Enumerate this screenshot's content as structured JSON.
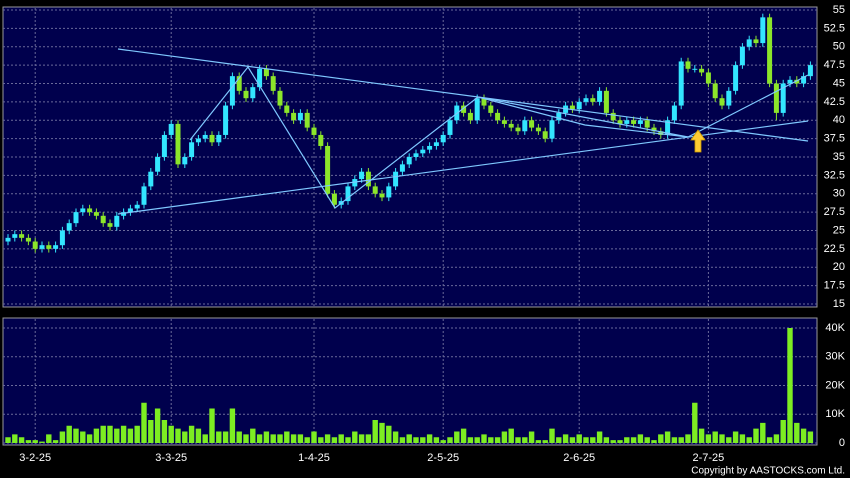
{
  "chart_data": {
    "type": "candlestick",
    "categories": [
      null,
      null,
      null,
      null,
      "3-2-25",
      null,
      null,
      null,
      null,
      null,
      null,
      null,
      null,
      null,
      null,
      null,
      null,
      null,
      null,
      null,
      null,
      null,
      null,
      null,
      "3-3-25",
      null,
      null,
      null,
      null,
      null,
      null,
      null,
      null,
      null,
      null,
      null,
      null,
      null,
      null,
      null,
      null,
      null,
      null,
      null,
      null,
      "1-4-25",
      null,
      null,
      null,
      null,
      null,
      null,
      null,
      null,
      null,
      null,
      null,
      null,
      null,
      null,
      null,
      null,
      null,
      null,
      "2-5-25",
      null,
      null,
      null,
      null,
      null,
      null,
      null,
      null,
      null,
      null,
      null,
      null,
      null,
      null,
      null,
      null,
      null,
      null,
      null,
      "2-6-25",
      null,
      null,
      null,
      null,
      null,
      null,
      null,
      null,
      null,
      null,
      null,
      null,
      null,
      null,
      null,
      null,
      null,
      null,
      "2-7-25",
      null,
      null,
      null,
      null,
      null,
      null,
      null,
      null,
      null,
      null,
      null,
      null,
      null,
      null,
      null
    ],
    "open": [
      23.5,
      24,
      24.5,
      24,
      23.5,
      22.5,
      23,
      22.5,
      23,
      25,
      26,
      27.5,
      28,
      27.5,
      27,
      26,
      25.5,
      27,
      27.5,
      28,
      28.5,
      31,
      33,
      35,
      38,
      39.5,
      34,
      35,
      37,
      37.5,
      38,
      37,
      38,
      42,
      46,
      44,
      43,
      44.5,
      47,
      46,
      44,
      42,
      41,
      40,
      41,
      39,
      38,
      36.5,
      30,
      28.5,
      29,
      31,
      32,
      33,
      31,
      30,
      29.5,
      31,
      33,
      34,
      35,
      35.5,
      36,
      36.5,
      37,
      38,
      40,
      42,
      41,
      40,
      43,
      42,
      41,
      40,
      39.5,
      39,
      38.5,
      40,
      39,
      38.5,
      37.5,
      40,
      41,
      42,
      41.5,
      42.5,
      43,
      42.5,
      44,
      41,
      40,
      39.5,
      40,
      39.5,
      40,
      39,
      38.5,
      38,
      40,
      42,
      48,
      47,
      47,
      46.5,
      45,
      43,
      42,
      44,
      47.5,
      50,
      51,
      50.5,
      54,
      45,
      41,
      45,
      45.5,
      45,
      46
    ],
    "high": [
      24.5,
      25,
      25,
      24.5,
      24,
      23.5,
      23.5,
      23.5,
      25.5,
      26.5,
      28,
      28.5,
      28.5,
      28,
      27.5,
      26.5,
      27.5,
      28,
      28.5,
      29,
      31.5,
      33.5,
      35.5,
      38.5,
      40,
      40,
      35.5,
      37.5,
      38,
      38.5,
      38.5,
      38.5,
      42.5,
      46.5,
      46.5,
      44.5,
      45,
      47.5,
      47.5,
      46.5,
      44.5,
      42.5,
      41.5,
      41.5,
      41.5,
      39.5,
      38.5,
      37,
      30.5,
      29.5,
      31.5,
      32.5,
      33.5,
      33.5,
      31.5,
      30.5,
      31.5,
      33.5,
      34.5,
      35.5,
      36,
      36.5,
      37,
      37.5,
      38.5,
      40.5,
      42.5,
      42.5,
      41.5,
      43.5,
      43.5,
      42.5,
      41.5,
      40.5,
      40,
      39.5,
      40.5,
      40.5,
      39.5,
      39,
      40.5,
      41.5,
      42.5,
      42.5,
      43,
      43.5,
      43.5,
      44.5,
      44.5,
      41.5,
      40.5,
      40.5,
      40.5,
      40.5,
      40.5,
      39.5,
      39,
      40.5,
      42.5,
      48.5,
      48.5,
      47.5,
      47.5,
      47,
      45.5,
      43.5,
      44.5,
      48,
      50.5,
      51.5,
      51.5,
      54.5,
      54.5,
      45.5,
      45.5,
      46,
      46,
      46.5,
      48
    ],
    "low": [
      23,
      23.5,
      23.5,
      23,
      22,
      22,
      22,
      22,
      22.5,
      24.5,
      25.5,
      27,
      27,
      26.5,
      25.5,
      25,
      25,
      26.5,
      27,
      27.5,
      28,
      30.5,
      32.5,
      34.5,
      37.5,
      33.5,
      33.5,
      34.5,
      36.5,
      37,
      36.5,
      36.5,
      37.5,
      41.5,
      43.5,
      42.5,
      42.5,
      44,
      45.5,
      43.5,
      41.5,
      40.5,
      39.5,
      39.5,
      38.5,
      37.5,
      36,
      29.5,
      28,
      28,
      28.5,
      30.5,
      31.5,
      30.5,
      29.5,
      29,
      29,
      30.5,
      32.5,
      33.5,
      34.5,
      35,
      35.5,
      36,
      36.5,
      37.5,
      39.5,
      40.5,
      39.5,
      39.5,
      41.5,
      40.5,
      39.5,
      39,
      38.5,
      38,
      38,
      38.5,
      38,
      37,
      37,
      39.5,
      40.5,
      41,
      41,
      42,
      42,
      42,
      40.5,
      39.5,
      39,
      39,
      39,
      39,
      38.5,
      38,
      37.5,
      37.5,
      39.5,
      41.5,
      46.5,
      46.5,
      46,
      44.5,
      42.5,
      41.5,
      41.5,
      43.5,
      47,
      49.5,
      50,
      50,
      44.5,
      40,
      40.5,
      44.5,
      44.5,
      44.5,
      45.5
    ],
    "close": [
      24,
      24.5,
      24,
      23.5,
      22.5,
      23,
      22.5,
      23,
      25,
      26,
      27.5,
      28,
      27.5,
      27,
      26,
      25.5,
      27,
      27.5,
      28,
      28.5,
      31,
      33,
      35,
      38,
      39.5,
      34,
      35,
      37,
      37.5,
      38,
      37,
      38,
      42,
      46,
      44,
      43,
      44.5,
      47,
      46,
      44,
      42,
      41,
      40,
      41,
      39,
      38,
      36.5,
      30,
      28.5,
      29,
      31,
      32,
      33,
      31,
      30,
      29.5,
      31,
      33,
      34,
      35,
      35.5,
      36,
      36.5,
      37,
      38,
      40,
      42,
      41,
      40,
      43,
      42,
      41,
      40,
      39.5,
      39,
      38.5,
      40,
      39,
      38.5,
      37.5,
      40,
      41,
      42,
      41.5,
      42.5,
      43,
      42.5,
      44,
      41,
      40,
      39.5,
      40,
      39.5,
      40,
      39,
      38.5,
      38,
      40,
      42,
      48,
      47,
      47,
      46.5,
      45,
      43,
      42,
      44,
      47.5,
      50,
      51,
      50.5,
      54,
      45,
      41,
      45,
      45.5,
      45,
      46,
      47.5
    ],
    "volume": [
      2000,
      3000,
      2000,
      1000,
      1000,
      500,
      3000,
      1000,
      4000,
      6000,
      5000,
      4000,
      3000,
      5000,
      6000,
      6000,
      5000,
      6000,
      5000,
      6000,
      14000,
      8000,
      12000,
      8000,
      6000,
      5000,
      4000,
      6000,
      5000,
      3000,
      12000,
      4000,
      4000,
      12000,
      4000,
      3000,
      5000,
      3000,
      4000,
      3000,
      3000,
      4000,
      3000,
      3000,
      2000,
      4000,
      2000,
      3000,
      2000,
      3000,
      2000,
      4000,
      3000,
      3000,
      8000,
      7000,
      6000,
      4000,
      2000,
      3000,
      2000,
      2000,
      3000,
      2000,
      1000,
      2000,
      4000,
      5000,
      2000,
      2000,
      3000,
      2000,
      2000,
      4000,
      5000,
      2000,
      2000,
      4000,
      1000,
      1000,
      5000,
      2000,
      3000,
      2000,
      3000,
      2000,
      2000,
      4000,
      2000,
      1000,
      1000,
      2000,
      2000,
      3000,
      2000,
      1000,
      3000,
      4000,
      2000,
      2000,
      3000,
      14000,
      5000,
      3000,
      4000,
      3000,
      2000,
      4000,
      3000,
      2000,
      5000,
      7000,
      2000,
      3000,
      8000,
      40000,
      7000,
      5000,
      4000
    ],
    "ylim": [
      15,
      55
    ],
    "yticks": [
      15,
      17.5,
      20,
      22.5,
      25,
      27.5,
      30,
      32.5,
      35,
      37.5,
      40,
      42.5,
      45,
      47.5,
      50,
      52.5,
      55
    ],
    "volume_lim": [
      0,
      40000
    ],
    "volume_ticks": [
      0,
      {
        "value": 10000,
        "label": "10K"
      },
      {
        "value": 20000,
        "label": "20K"
      },
      {
        "value": 30000,
        "label": "30K"
      },
      {
        "value": 40000,
        "label": "40K"
      }
    ],
    "up_color": "#33e6ff",
    "down_color": "#8ce62a",
    "volume_color": "#7ded22",
    "grid": true
  },
  "footer": "Copyright by AASTOCKS.com Ltd."
}
